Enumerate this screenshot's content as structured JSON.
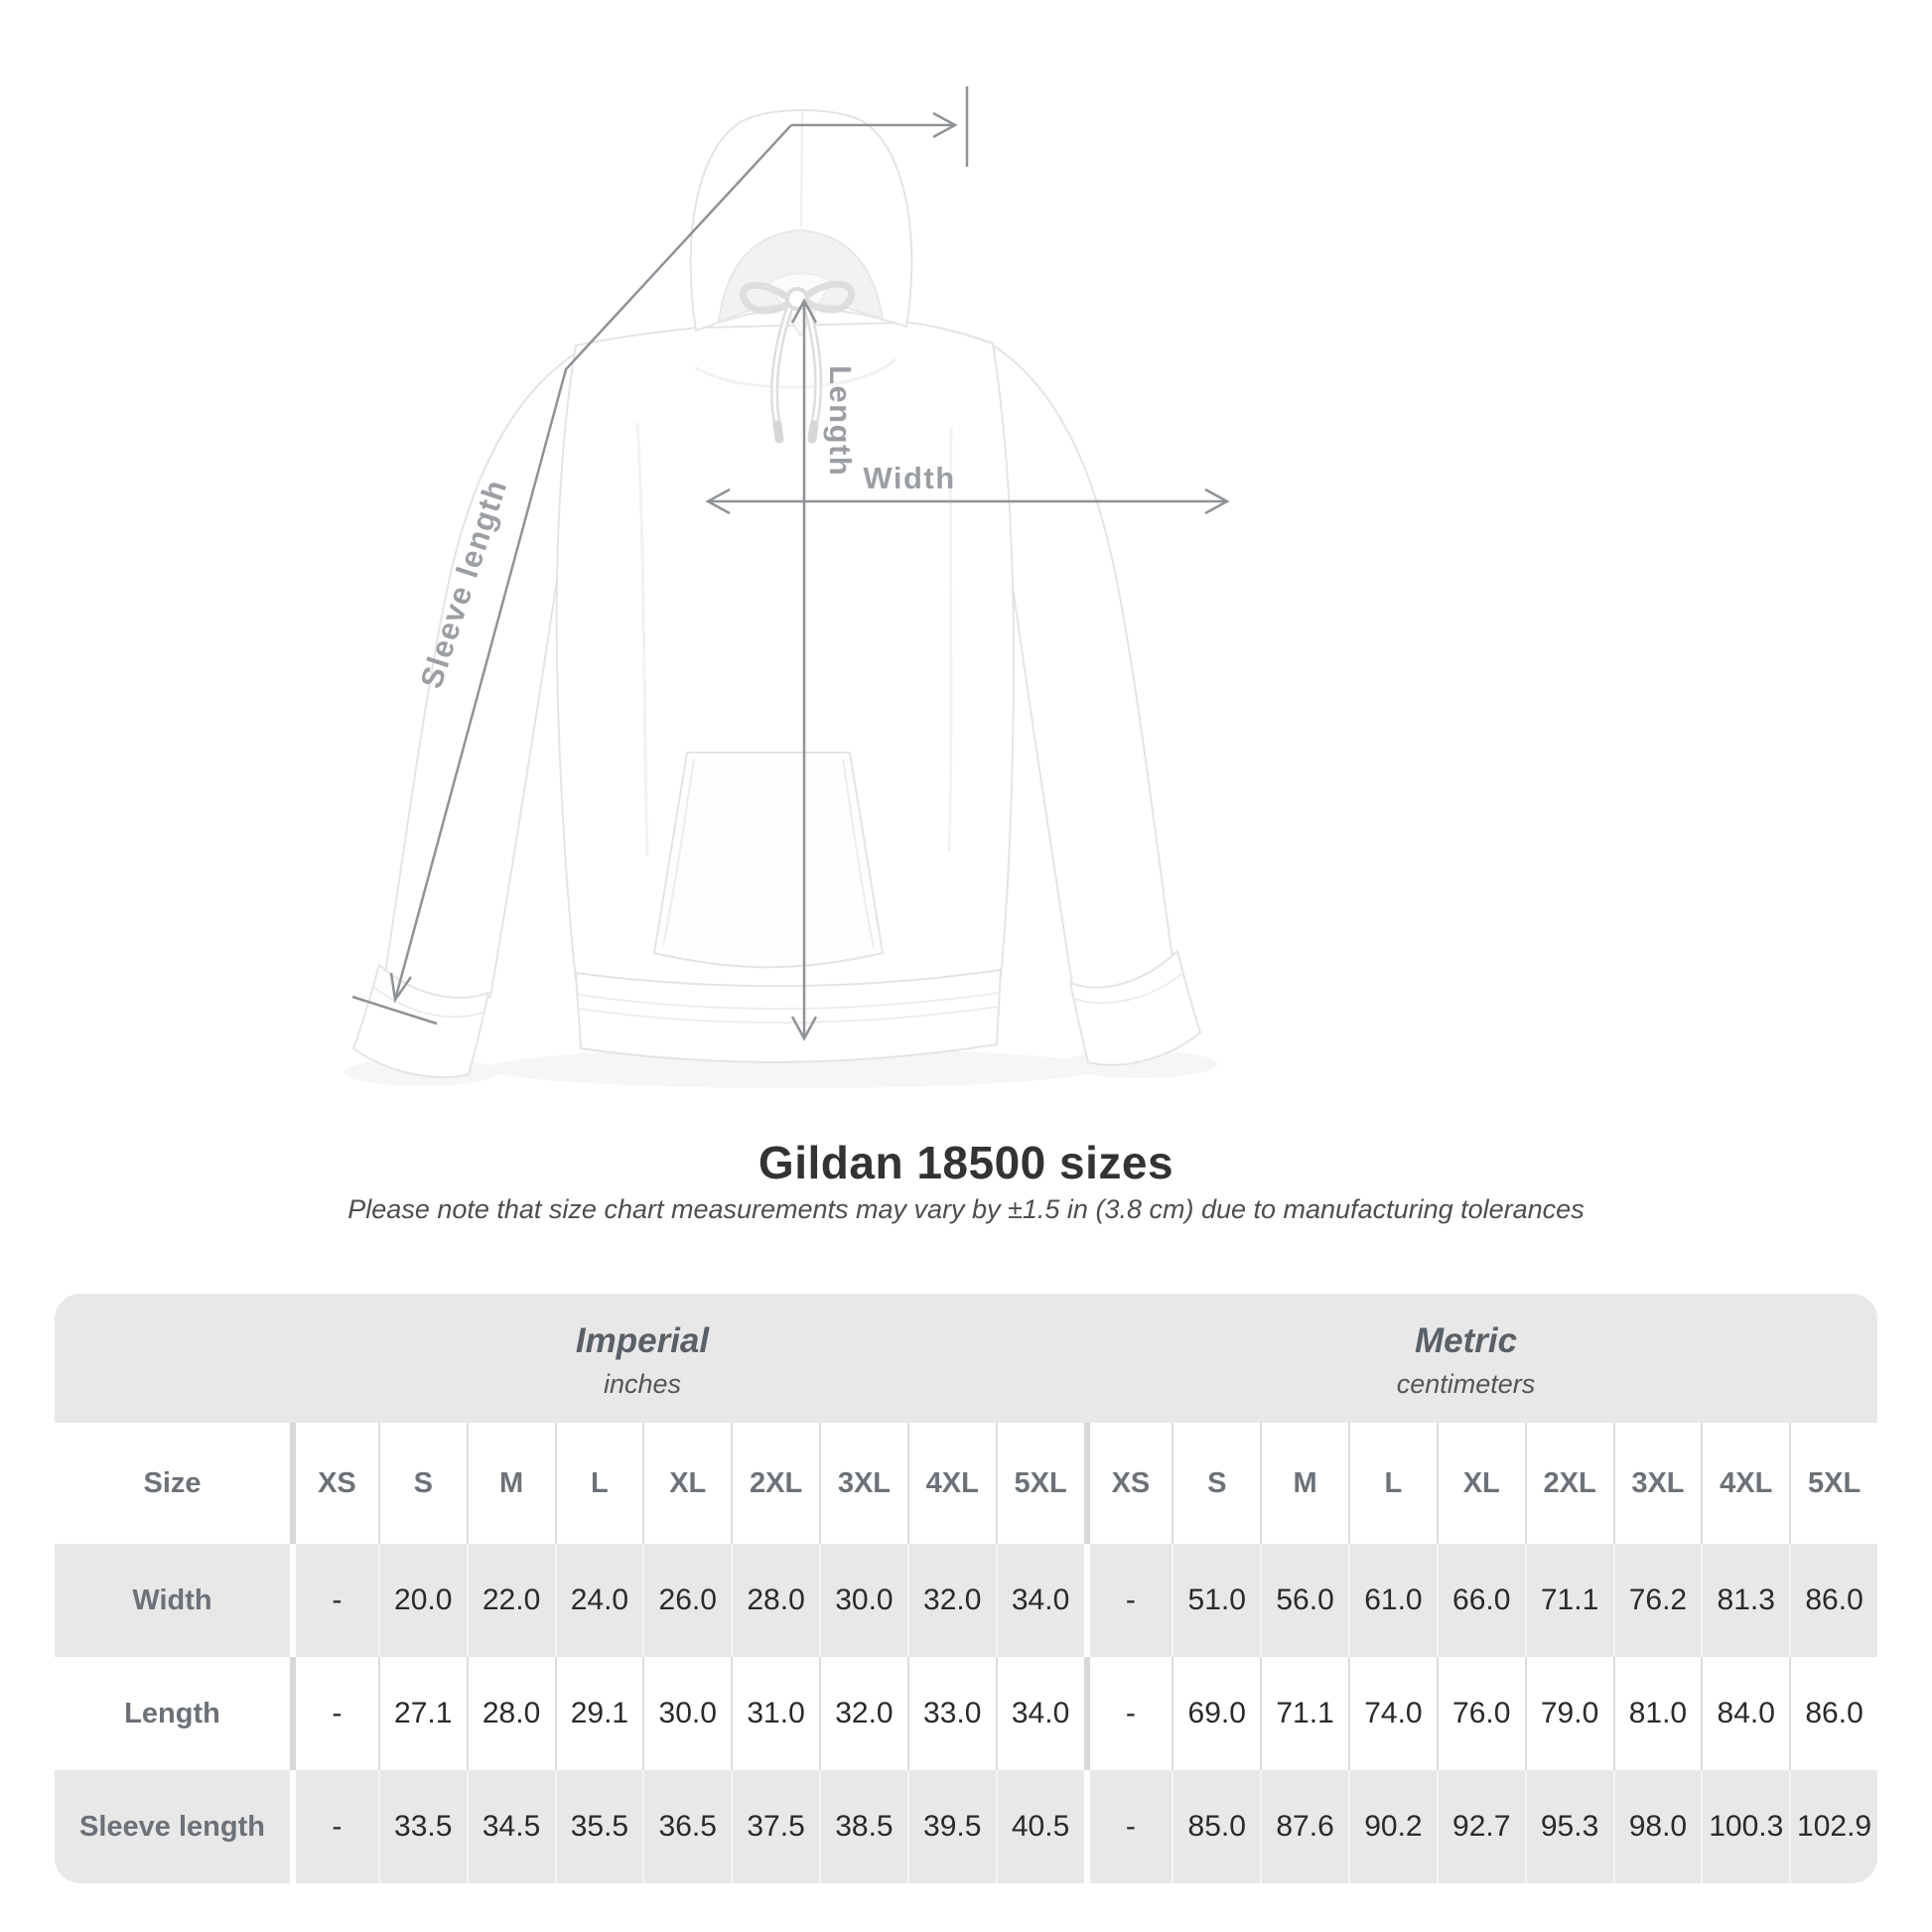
{
  "diagram": {
    "length_label": "Length",
    "width_label": "Width",
    "sleeve_label": "Sleeve length",
    "line_color": "#8f9398",
    "label_color": "#9b9fa3"
  },
  "chart_data": {
    "type": "table",
    "title": "Gildan 18500 sizes",
    "note": "Please note that size chart measurements may vary by ±1.5 in (3.8 cm) due to manufacturing tolerances",
    "size_column_header": "Size",
    "sizes": [
      "XS",
      "S",
      "M",
      "L",
      "XL",
      "2XL",
      "3XL",
      "4XL",
      "5XL"
    ],
    "units": [
      {
        "name": "Imperial",
        "unit": "inches"
      },
      {
        "name": "Metric",
        "unit": "centimeters"
      }
    ],
    "rows": [
      {
        "label": "Width",
        "imperial": [
          "-",
          "20.0",
          "22.0",
          "24.0",
          "26.0",
          "28.0",
          "30.0",
          "32.0",
          "34.0"
        ],
        "metric": [
          "-",
          "51.0",
          "56.0",
          "61.0",
          "66.0",
          "71.1",
          "76.2",
          "81.3",
          "86.0"
        ]
      },
      {
        "label": "Length",
        "imperial": [
          "-",
          "27.1",
          "28.0",
          "29.1",
          "30.0",
          "31.0",
          "32.0",
          "33.0",
          "34.0"
        ],
        "metric": [
          "-",
          "69.0",
          "71.1",
          "74.0",
          "76.0",
          "79.0",
          "81.0",
          "84.0",
          "86.0"
        ]
      },
      {
        "label": "Sleeve length",
        "imperial": [
          "-",
          "33.5",
          "34.5",
          "35.5",
          "36.5",
          "37.5",
          "38.5",
          "39.5",
          "40.5"
        ],
        "metric": [
          "-",
          "85.0",
          "87.6",
          "90.2",
          "92.7",
          "95.3",
          "98.0",
          "100.3",
          "102.9"
        ]
      }
    ],
    "legend_position": "none",
    "grid": false
  }
}
